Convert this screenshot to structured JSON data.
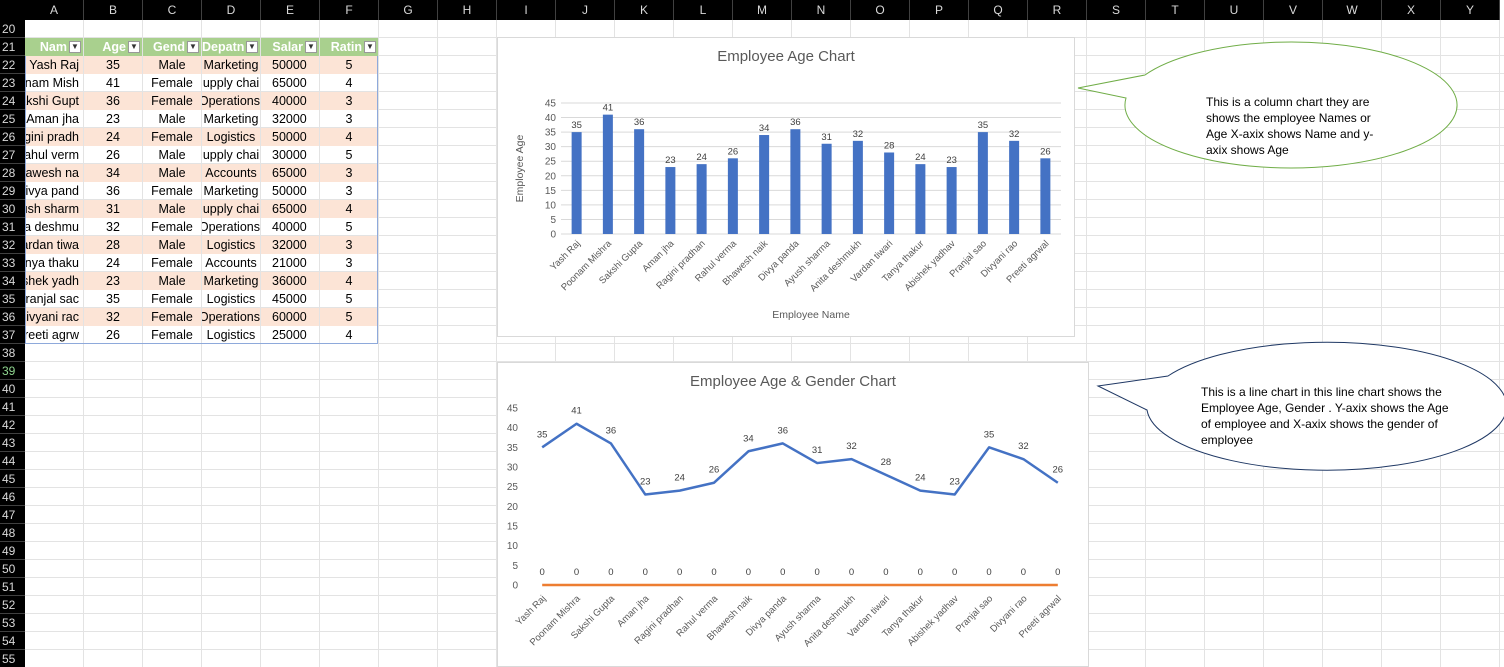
{
  "columns": [
    "A",
    "B",
    "C",
    "D",
    "E",
    "F",
    "G",
    "H",
    "I",
    "J",
    "K",
    "L",
    "M",
    "N",
    "O",
    "P",
    "Q",
    "R",
    "S",
    "T",
    "U",
    "V",
    "W",
    "X",
    "Y"
  ],
  "rows": [
    "20",
    "21",
    "22",
    "23",
    "24",
    "25",
    "26",
    "27",
    "28",
    "29",
    "30",
    "31",
    "32",
    "33",
    "34",
    "35",
    "36",
    "37",
    "38",
    "39",
    "40",
    "41",
    "42",
    "43",
    "44",
    "45",
    "46",
    "47",
    "48",
    "49",
    "50",
    "51",
    "52",
    "53",
    "54",
    "55"
  ],
  "active_row": "39",
  "table": {
    "headers": [
      "Nam",
      "Age",
      "Gend",
      "Depatn",
      "Salar",
      "Ratin"
    ],
    "rows": [
      [
        "Yash Raj",
        "35",
        "Male",
        "Marketing",
        "50000",
        "5"
      ],
      [
        "onam Mish",
        "41",
        "Female",
        "upply chai",
        "65000",
        "4"
      ],
      [
        "akshi Gupt",
        "36",
        "Female",
        "Operations",
        "40000",
        "3"
      ],
      [
        "Aman jha",
        "23",
        "Male",
        "Marketing",
        "32000",
        "3"
      ],
      [
        "gini pradh",
        "24",
        "Female",
        "Logistics",
        "50000",
        "4"
      ],
      [
        "ahul verm",
        "26",
        "Male",
        "upply chai",
        "30000",
        "5"
      ],
      [
        "hawesh na",
        "34",
        "Male",
        "Accounts",
        "65000",
        "3"
      ],
      [
        "Divya pand",
        "36",
        "Female",
        "Marketing",
        "50000",
        "3"
      ],
      [
        "yush sharm",
        "31",
        "Male",
        "upply chai",
        "65000",
        "4"
      ],
      [
        "ita deshmu",
        "32",
        "Female",
        "Operations",
        "40000",
        "5"
      ],
      [
        "ardan tiwa",
        "28",
        "Male",
        "Logistics",
        "32000",
        "3"
      ],
      [
        "anya thaku",
        "24",
        "Female",
        "Accounts",
        "21000",
        "3"
      ],
      [
        "ishek yadh",
        "23",
        "Male",
        "Marketing",
        "36000",
        "4"
      ],
      [
        "Pranjal sac",
        "35",
        "Female",
        "Logistics",
        "45000",
        "5"
      ],
      [
        "Divyani rac",
        "32",
        "Female",
        "Operations",
        "60000",
        "5"
      ],
      [
        "reeti agrw",
        "26",
        "Female",
        "Logistics",
        "25000",
        "4"
      ]
    ]
  },
  "chart_data": [
    {
      "type": "bar",
      "title": "Employee Age Chart",
      "xlabel": "Employee Name",
      "ylabel": "Employee Age",
      "ylim": [
        0,
        45
      ],
      "yticks": [
        "0",
        "5",
        "10",
        "15",
        "20",
        "25",
        "30",
        "35",
        "40",
        "45"
      ],
      "categories": [
        "Yash Raj",
        "Poonam Mishra",
        "Sakshi Gupta",
        "Aman jha",
        "Ragini pradhan",
        "Rahul verma",
        "Bhawesh naik",
        "Divya panda",
        "Ayush sharma",
        "Anita deshmukh",
        "Vardan tiwari",
        "Tanya thakur",
        "Abishek yadhav",
        "Pranjal sao",
        "Divyani rao",
        "Preeti agrwal"
      ],
      "values": [
        35,
        41,
        36,
        23,
        24,
        26,
        34,
        36,
        31,
        32,
        28,
        24,
        23,
        35,
        32,
        26
      ],
      "color": "#4472c4",
      "grid": true
    },
    {
      "type": "line",
      "title": "Employee Age & Gender Chart",
      "ylim": [
        0,
        45
      ],
      "yticks": [
        "0",
        "5",
        "10",
        "15",
        "20",
        "25",
        "30",
        "35",
        "40",
        "45"
      ],
      "categories": [
        "Yash Raj",
        "Poonam Mishra",
        "Sakshi Gupta",
        "Aman jha",
        "Ragini pradhan",
        "Rahul verma",
        "Bhawesh naik",
        "Divya panda",
        "Ayush sharma",
        "Anita deshmukh",
        "Vardan tiwari",
        "Tanya thakur",
        "Abishek yadhav",
        "Pranjal sao",
        "Divyani rao",
        "Preeti agrwal"
      ],
      "series": [
        {
          "values": [
            35,
            41,
            36,
            23,
            24,
            26,
            34,
            36,
            31,
            32,
            28,
            24,
            23,
            35,
            32,
            26
          ],
          "color": "#4472c4"
        },
        {
          "values": [
            0,
            0,
            0,
            0,
            0,
            0,
            0,
            0,
            0,
            0,
            0,
            0,
            0,
            0,
            0,
            0
          ],
          "color": "#ed7d31"
        }
      ],
      "grid": false
    }
  ],
  "callouts": [
    {
      "text": "This is a column chart they are shows the employee Names or Age X-axix shows Name and y-axix shows Age",
      "border": "#70ad47"
    },
    {
      "text": "This is a line chart in this line chart shows the Employee Age, Gender . Y-axix shows the Age of employee and X-axix shows the gender of employee",
      "border": "#1f3864"
    }
  ]
}
